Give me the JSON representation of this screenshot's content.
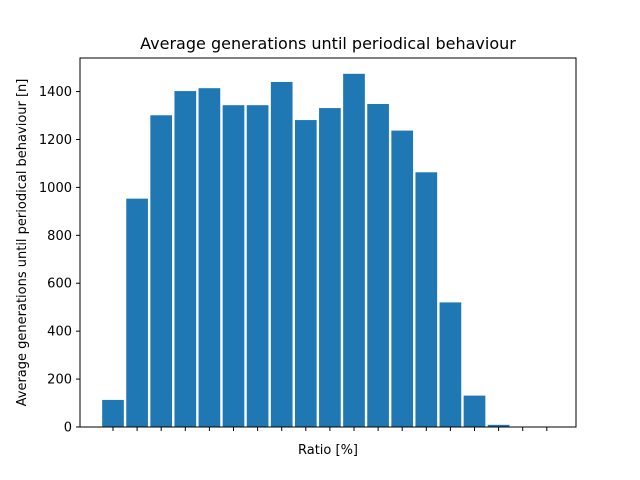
{
  "chart_data": {
    "type": "bar",
    "title": "Average generations until periodical behaviour",
    "xlabel": "Ratio [%]",
    "ylabel": "Average generations until periodical behaviour [n]",
    "categories": [
      "",
      "",
      "",
      "",
      "",
      "",
      "",
      "",
      "",
      "",
      "",
      "",
      "",
      "",
      "",
      "",
      "",
      "",
      ""
    ],
    "values": [
      113,
      953,
      1301,
      1402,
      1414,
      1343,
      1343,
      1440,
      1281,
      1331,
      1474,
      1348,
      1237,
      1063,
      520,
      131,
      9,
      0,
      0
    ],
    "ylim": [
      0,
      1540
    ],
    "yticks": [
      0,
      200,
      400,
      600,
      800,
      1000,
      1200,
      1400
    ],
    "bar_color": "#1f77b4",
    "grid": false,
    "legend": "none"
  }
}
